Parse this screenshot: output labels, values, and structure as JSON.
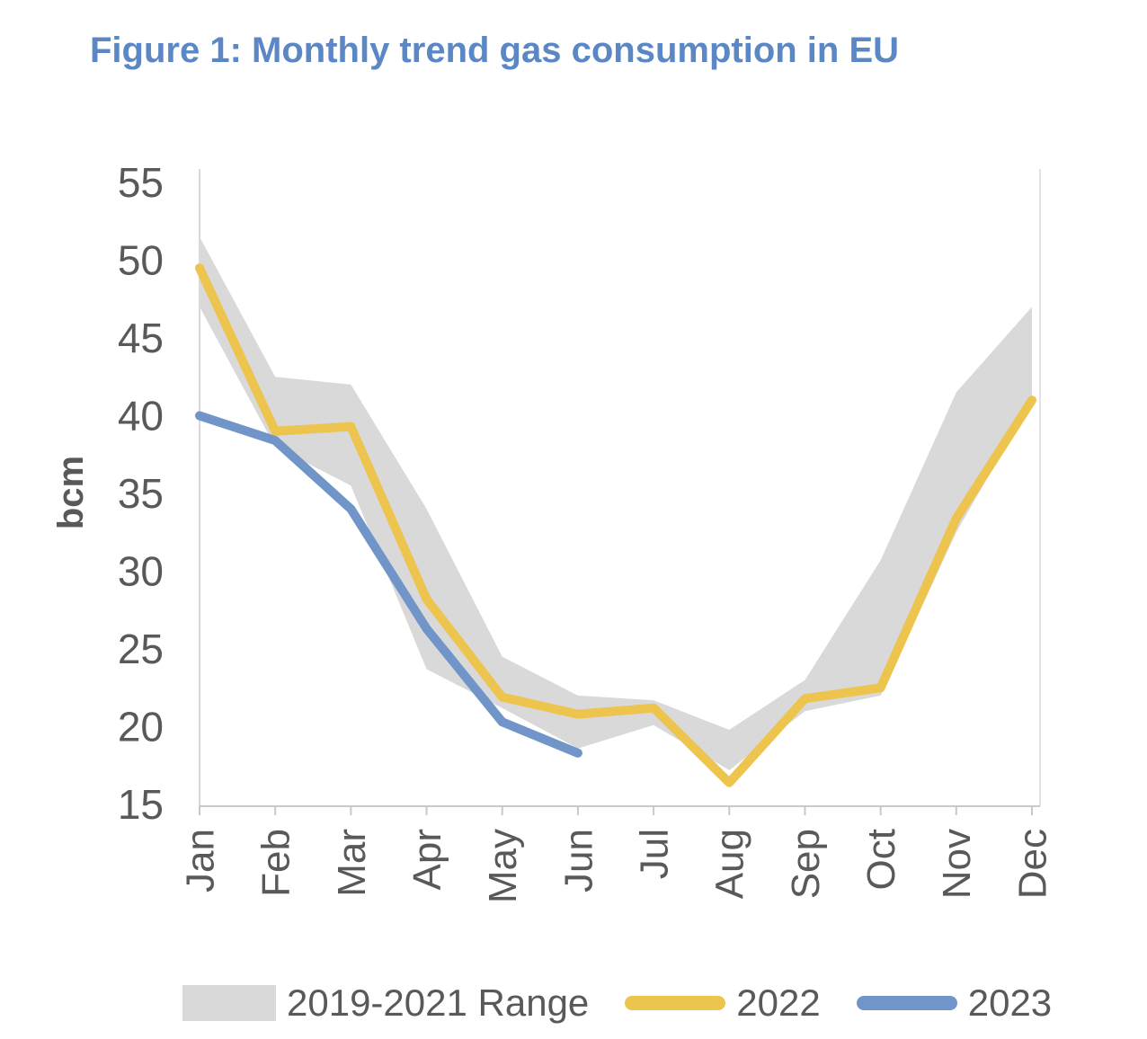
{
  "title": "Figure 1: Monthly trend gas consumption in EU",
  "legend": {
    "range_label": "2019-2021 Range",
    "y2022_label": "2022",
    "y2023_label": "2023"
  },
  "colors": {
    "title_blue": "#5B87C5",
    "band_gray": "#D9D9D9",
    "line_2022_yellow": "#EDC44E",
    "line_2023_blue": "#7195C8",
    "axis_text_gray": "#595959",
    "axis_line_gray": "#C9C9C9"
  },
  "chart_data": {
    "type": "line",
    "title": "Figure 1: Monthly trend gas consumption in EU",
    "ylabel": "bcm",
    "ylim": [
      15,
      55
    ],
    "ytick_labels": [
      55,
      50,
      45,
      40,
      35,
      30,
      25,
      20,
      15
    ],
    "categories": [
      "Jan",
      "Feb",
      "Mar",
      "Apr",
      "May",
      "Jun",
      "Jul",
      "Aug",
      "Sep",
      "Oct",
      "Nov",
      "Dec"
    ],
    "grid": false,
    "legend_position": "bottom",
    "series": [
      {
        "name": "2019-2021 Range",
        "kind": "band",
        "color": "#D9D9D9",
        "min": [
          47,
          38,
          35.5,
          23.7,
          21.2,
          18.6,
          20.1,
          17.2,
          21,
          22,
          32.5,
          41
        ],
        "max": [
          51.5,
          42.5,
          42,
          34,
          24.5,
          22,
          21.7,
          19.8,
          23,
          30.7,
          41.5,
          47
        ]
      },
      {
        "name": "2022",
        "kind": "line",
        "color": "#EDC44E",
        "values": [
          49.5,
          39,
          39.3,
          28.2,
          21.9,
          20.8,
          21.2,
          16.4,
          21.8,
          22.5,
          33.4,
          41
        ]
      },
      {
        "name": "2023",
        "kind": "line",
        "color": "#7195C8",
        "values": [
          40,
          38.4,
          34,
          26.3,
          20.3,
          18.3,
          null,
          null,
          null,
          null,
          null,
          null
        ]
      }
    ]
  }
}
